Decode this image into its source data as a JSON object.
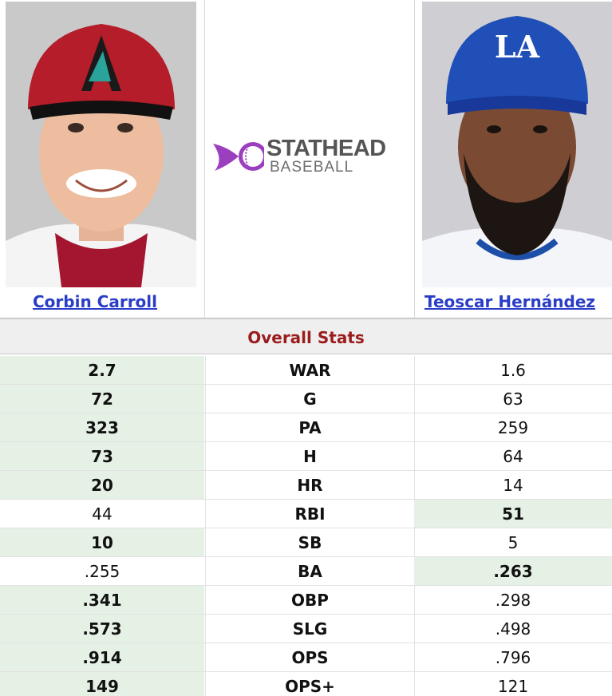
{
  "players": {
    "left": {
      "name": "Corbin Carroll",
      "cap_logo": "A"
    },
    "right": {
      "name": "Teoscar Hernández",
      "cap_logo": "LA"
    }
  },
  "logo": {
    "line1": "STATHEAD",
    "line2": "BASEBALL",
    "accent": "#9b3fbf"
  },
  "section": {
    "title": "Overall Stats"
  },
  "colors": {
    "win_bg": "#e6f1e6",
    "title": "#9b1c1c",
    "link": "#2a3dc6"
  },
  "stats": [
    {
      "label": "WAR",
      "left": "2.7",
      "right": "1.6",
      "leader": "left"
    },
    {
      "label": "G",
      "left": "72",
      "right": "63",
      "leader": "left"
    },
    {
      "label": "PA",
      "left": "323",
      "right": "259",
      "leader": "left"
    },
    {
      "label": "H",
      "left": "73",
      "right": "64",
      "leader": "left"
    },
    {
      "label": "HR",
      "left": "20",
      "right": "14",
      "leader": "left"
    },
    {
      "label": "RBI",
      "left": "44",
      "right": "51",
      "leader": "right"
    },
    {
      "label": "SB",
      "left": "10",
      "right": "5",
      "leader": "left"
    },
    {
      "label": "BA",
      "left": ".255",
      "right": ".263",
      "leader": "right"
    },
    {
      "label": "OBP",
      "left": ".341",
      "right": ".298",
      "leader": "left"
    },
    {
      "label": "SLG",
      "left": ".573",
      "right": ".498",
      "leader": "left"
    },
    {
      "label": "OPS",
      "left": ".914",
      "right": ".796",
      "leader": "left"
    },
    {
      "label": "OPS+",
      "left": "149",
      "right": "121",
      "leader": "left"
    }
  ]
}
